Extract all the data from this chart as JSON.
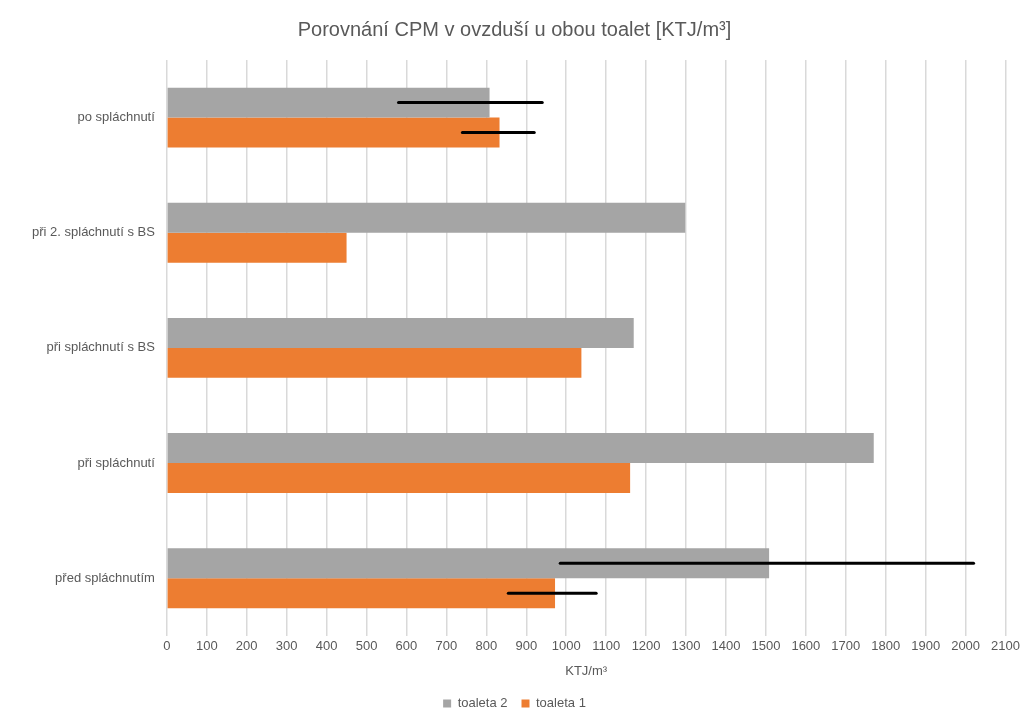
{
  "chart_data": {
    "type": "bar",
    "orientation": "horizontal",
    "title": "Porovnání CPM v ovzduší u obou toalet [KTJ/m³]",
    "xlabel": "KTJ/m³",
    "categories": [
      "po spláchnutí",
      "při 2. spláchnutí s BS",
      "při spláchnutí s BS",
      "při spláchnutí",
      "před spláchnutím"
    ],
    "series": [
      {
        "name": "toaleta 2",
        "color": "#a5a5a5",
        "values": [
          808,
          1298,
          1169,
          1770,
          1508
        ],
        "errors": [
          [
            580,
            940
          ],
          null,
          null,
          null,
          [
            985,
            2020
          ]
        ]
      },
      {
        "name": "toaleta 1",
        "color": "#ed7d31",
        "values": [
          833,
          450,
          1038,
          1160,
          972
        ],
        "errors": [
          [
            740,
            920
          ],
          null,
          null,
          null,
          [
            855,
            1075
          ]
        ]
      }
    ],
    "xlim": [
      0,
      2100
    ],
    "xticks": [
      0,
      100,
      200,
      300,
      400,
      500,
      600,
      700,
      800,
      900,
      1000,
      1100,
      1200,
      1300,
      1400,
      1500,
      1600,
      1700,
      1800,
      1900,
      2000,
      2100
    ],
    "grid": "x",
    "legend": "bottom"
  }
}
